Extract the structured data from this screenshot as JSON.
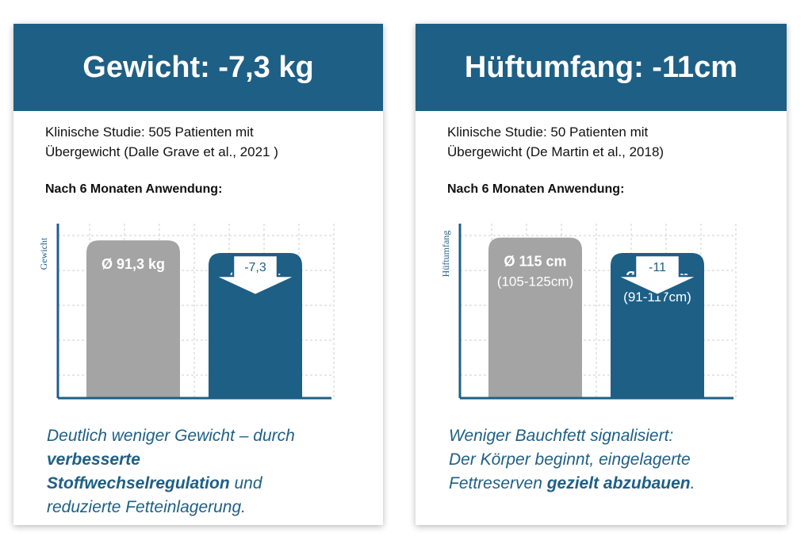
{
  "cards": [
    {
      "title": "Gewicht:  -7,3 kg",
      "study_line1": "Klinische Studie: 505 Patienten mit",
      "study_line2": "Übergewicht (Dalle Grave et al., 2021 )",
      "subhead": "Nach 6 Monaten Anwendung:",
      "tagline": {
        "t1": "Deutlich weniger Gewicht – durch",
        "b1": "verbesserte",
        "b2": "Stoffwechselregulation",
        "t2": " und",
        "t3": "reduzierte Fetteinlagerung."
      }
    },
    {
      "title": "Hüftumfang:  -11cm",
      "study_line1": "Klinische Studie: 50 Patienten mit",
      "study_line2": "Übergewicht (De Martin et al., 2018)",
      "subhead": "Nach 6 Monaten Anwendung:",
      "tagline": {
        "t1": "Weniger Bauchfett signalisiert:",
        "t2": "Der Körper beginnt, eingelagerte",
        "t3": "Fettreserven ",
        "b1": "gezielt abzubauen",
        "t4": "."
      }
    }
  ],
  "colors": {
    "accent": "#1e5f86",
    "gray_bar": "#a4a4a4",
    "grid": "#cfcfcf"
  },
  "chart_data": [
    {
      "type": "bar",
      "ylabel": "Gewicht",
      "categories": [
        "",
        ""
      ],
      "values": [
        91.3,
        84
      ],
      "value_labels": [
        "Ø 91,3 kg",
        "Ø 84 kg"
      ],
      "range_labels": [
        "",
        ""
      ],
      "difference_label": "-7,3",
      "ylim": [
        0,
        101
      ]
    },
    {
      "type": "bar",
      "ylabel": "Hüftumfang",
      "categories": [
        "",
        ""
      ],
      "values": [
        115,
        104
      ],
      "value_labels": [
        "Ø 115 cm",
        "Ø 104 cm"
      ],
      "range_labels": [
        "(105-125cm)",
        "(91-117cm)"
      ],
      "difference_label": "-11",
      "ylim": [
        0,
        125
      ]
    }
  ]
}
